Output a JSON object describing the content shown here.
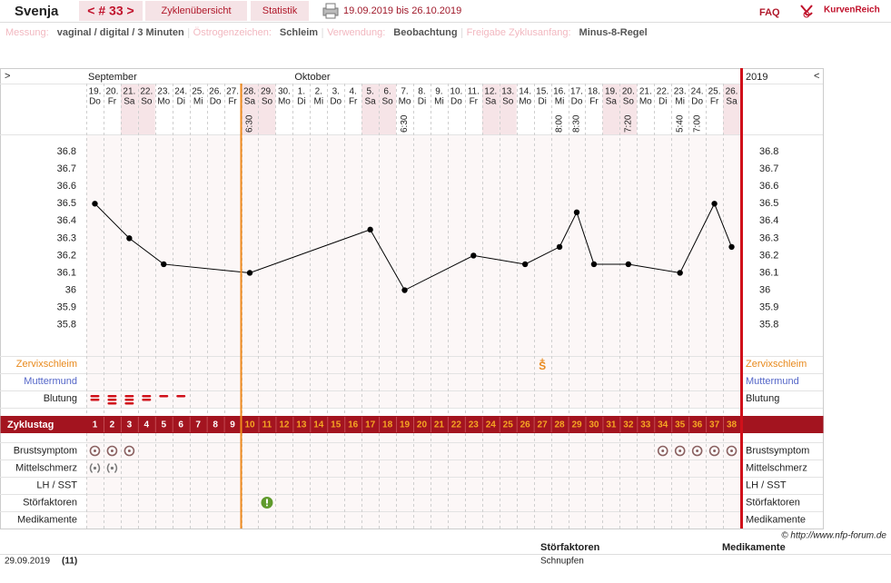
{
  "header": {
    "name": "Svenja",
    "cycle_nav": "< # 33 >",
    "tabs": [
      "Zyklenübersicht",
      "Statistik"
    ],
    "date_range": "19.09.2019 bis 26.10.2019",
    "faq": "FAQ",
    "brand": "KurvenReich"
  },
  "settings": [
    {
      "label": "Messung:",
      "value": "vaginal / digital / 3 Minuten"
    },
    {
      "label": "Östrogenzeichen:",
      "value": "Schleim"
    },
    {
      "label": "Verwendung:",
      "value": "Beobachtung"
    },
    {
      "label": "Freigabe Zyklusanfang:",
      "value": "Minus-8-Regel"
    }
  ],
  "calendar": {
    "nav_left": ">",
    "nav_right": "<",
    "year": "2019",
    "months": [
      "September",
      "Oktober"
    ],
    "days": [
      {
        "date": "19.",
        "weekday": "Do"
      },
      {
        "date": "20.",
        "weekday": "Fr"
      },
      {
        "date": "21.",
        "weekday": "Sa"
      },
      {
        "date": "22.",
        "weekday": "So"
      },
      {
        "date": "23.",
        "weekday": "Mo"
      },
      {
        "date": "24.",
        "weekday": "Di"
      },
      {
        "date": "25.",
        "weekday": "Mi"
      },
      {
        "date": "26.",
        "weekday": "Do"
      },
      {
        "date": "27.",
        "weekday": "Fr"
      },
      {
        "date": "28.",
        "weekday": "Sa",
        "time": "6:30"
      },
      {
        "date": "29.",
        "weekday": "So"
      },
      {
        "date": "30.",
        "weekday": "Mo"
      },
      {
        "date": "1.",
        "weekday": "Di"
      },
      {
        "date": "2.",
        "weekday": "Mi"
      },
      {
        "date": "3.",
        "weekday": "Do"
      },
      {
        "date": "4.",
        "weekday": "Fr"
      },
      {
        "date": "5.",
        "weekday": "Sa"
      },
      {
        "date": "6.",
        "weekday": "So"
      },
      {
        "date": "7.",
        "weekday": "Mo",
        "time": "6:30"
      },
      {
        "date": "8.",
        "weekday": "Di"
      },
      {
        "date": "9.",
        "weekday": "Mi"
      },
      {
        "date": "10.",
        "weekday": "Do"
      },
      {
        "date": "11.",
        "weekday": "Fr"
      },
      {
        "date": "12.",
        "weekday": "Sa"
      },
      {
        "date": "13.",
        "weekday": "So"
      },
      {
        "date": "14.",
        "weekday": "Mo"
      },
      {
        "date": "15.",
        "weekday": "Di"
      },
      {
        "date": "16.",
        "weekday": "Mi",
        "time": "8:00"
      },
      {
        "date": "17.",
        "weekday": "Do",
        "time": "8:30"
      },
      {
        "date": "18.",
        "weekday": "Fr"
      },
      {
        "date": "19.",
        "weekday": "Sa"
      },
      {
        "date": "20.",
        "weekday": "So",
        "time": "7:20"
      },
      {
        "date": "21.",
        "weekday": "Mo"
      },
      {
        "date": "22.",
        "weekday": "Di"
      },
      {
        "date": "23.",
        "weekday": "Mi",
        "time": "5:40"
      },
      {
        "date": "24.",
        "weekday": "Do",
        "time": "7:00"
      },
      {
        "date": "25.",
        "weekday": "Fr"
      },
      {
        "date": "26.",
        "weekday": "Sa"
      }
    ]
  },
  "chart_data": {
    "type": "line",
    "x": [
      1,
      3,
      5,
      10,
      17,
      19,
      23,
      26,
      28,
      29,
      30,
      32,
      35,
      37,
      38
    ],
    "values": [
      36.5,
      36.3,
      36.15,
      36.1,
      36.35,
      36.0,
      36.2,
      36.15,
      36.25,
      36.45,
      36.15,
      36.15,
      36.1,
      36.5,
      36.25
    ],
    "color": "#000000",
    "ylim": [
      35.63,
      36.89
    ],
    "yticks": [
      36.8,
      36.7,
      36.6,
      36.5,
      36.4,
      36.3,
      36.2,
      36.1,
      36,
      35.9,
      35.8
    ]
  },
  "observations": {
    "zervixschleim": {
      "label": "Zervixschleim",
      "entries": [
        {
          "day": 27,
          "symbol": "S"
        }
      ]
    },
    "muttermund": {
      "label": "Muttermund"
    },
    "blutung": {
      "label": "Blutung",
      "entries": [
        {
          "day": 1,
          "amount": 2
        },
        {
          "day": 2,
          "amount": 3
        },
        {
          "day": 3,
          "amount": 3
        },
        {
          "day": 4,
          "amount": 2
        },
        {
          "day": 5,
          "amount": 1
        },
        {
          "day": 6,
          "amount": 1
        }
      ]
    }
  },
  "cycle": {
    "label": "Zyklustag",
    "days": [
      1,
      2,
      3,
      4,
      5,
      6,
      7,
      8,
      9,
      10,
      11,
      12,
      13,
      14,
      15,
      16,
      17,
      18,
      19,
      20,
      21,
      22,
      23,
      24,
      25,
      26,
      27,
      28,
      29,
      30,
      31,
      32,
      33,
      34,
      35,
      36,
      37,
      38
    ]
  },
  "symptoms": {
    "brustsymptom": {
      "label": "Brustsymptom",
      "days": [
        1,
        2,
        3,
        34,
        35,
        36,
        37,
        38
      ]
    },
    "mittelschmerz": {
      "label": "Mittelschmerz",
      "days": [
        1,
        2
      ]
    },
    "lh_sst": {
      "label": "LH / SST",
      "days": []
    },
    "stoerfaktoren": {
      "label": "Störfaktoren",
      "days": [
        11
      ]
    },
    "medikamente": {
      "label": "Medikamente",
      "days": []
    }
  },
  "copyright": "© http://www.nfp-forum.de",
  "notes": {
    "headers": [
      "Störfaktoren",
      "Medikamente"
    ],
    "rows": [
      {
        "date": "29.09.2019",
        "cycle_day": "(11)",
        "stoerfaktoren": "Schnupfen"
      }
    ]
  }
}
